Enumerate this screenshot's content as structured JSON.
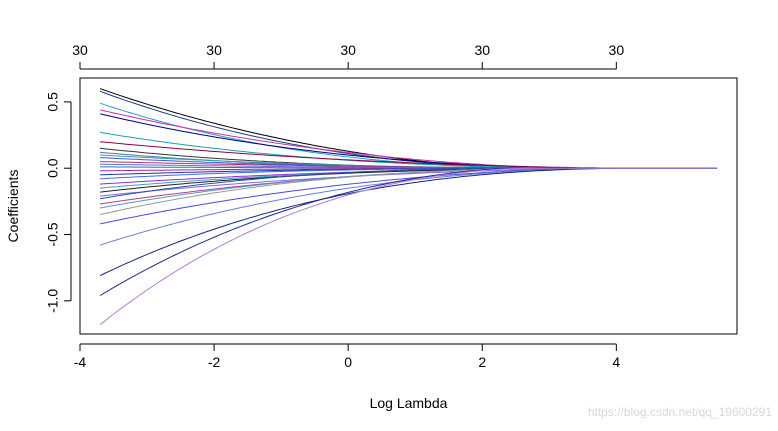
{
  "chart_data": {
    "type": "line",
    "title": "",
    "xlabel": "Log Lambda",
    "ylabel": "Coefficients",
    "xlim": [
      -4.0,
      5.8
    ],
    "ylim": [
      -1.25,
      0.68
    ],
    "x_ticks": [
      -4,
      -2,
      0,
      2,
      4
    ],
    "x_tick_labels": [
      "-4",
      "-2",
      "0",
      "2",
      "4"
    ],
    "y_ticks": [
      -1.0,
      -0.5,
      0.0,
      0.5
    ],
    "y_tick_labels": [
      "-1.0",
      "-0.5",
      "0.0",
      "0.5"
    ],
    "top_axis_ticks": [
      -4,
      -2,
      0,
      2,
      4
    ],
    "top_axis_labels": [
      "30",
      "30",
      "30",
      "30",
      "30"
    ],
    "grid": false,
    "legend": "none",
    "x_range": [
      -3.7,
      5.5
    ],
    "shrinkage_zero_at": [
      2.5,
      4.3
    ],
    "series_start_values": [
      0.6,
      0.58,
      0.49,
      0.44,
      0.41,
      0.27,
      0.2,
      0.15,
      0.12,
      0.1,
      0.08,
      0.05,
      0.03,
      0.01,
      -0.02,
      -0.05,
      -0.08,
      -0.12,
      -0.15,
      -0.18,
      -0.21,
      -0.23,
      -0.27,
      -0.3,
      -0.35,
      -0.42,
      -0.58,
      -0.81,
      -0.96,
      -1.18
    ],
    "series_colors": [
      "#000000",
      "#1f3b8c",
      "#21a3c8",
      "#cc3399",
      "#000080",
      "#1a9fb3",
      "#880044",
      "#333333",
      "#5c6bc0",
      "#2aa198",
      "#3b5bdb",
      "#aa3377",
      "#6b6bd6",
      "#1c7fb0",
      "#9c27b0",
      "#223399",
      "#4169e1",
      "#8a2be2",
      "#3aa0c0",
      "#222222",
      "#7b68ee",
      "#2f4f9f",
      "#b04080",
      "#5599cc",
      "#999999",
      "#4a4adf",
      "#6a7fdb",
      "#14238a",
      "#1e2a8f",
      "#b080d0"
    ]
  },
  "watermark": "https://blog.csdn.net/qq_19600291"
}
